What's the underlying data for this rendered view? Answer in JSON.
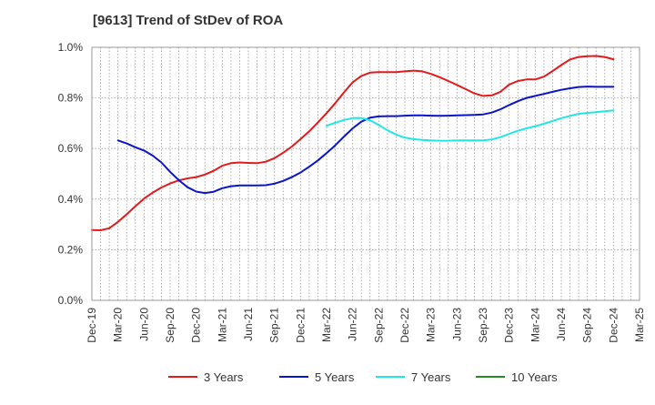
{
  "chart_data": {
    "type": "line",
    "title": "[9613]  Trend of StDev of ROA",
    "xlabel": "",
    "ylabel": "",
    "x": [
      "Dec-19",
      "Mar-20",
      "Jun-20",
      "Sep-20",
      "Dec-20",
      "Mar-21",
      "Jun-21",
      "Sep-21",
      "Dec-21",
      "Mar-22",
      "Jun-22",
      "Sep-22",
      "Dec-22",
      "Mar-23",
      "Jun-23",
      "Sep-23",
      "Dec-23",
      "Mar-24",
      "Jun-24",
      "Sep-24",
      "Dec-24",
      "Mar-25"
    ],
    "ylim": [
      0,
      1.0
    ],
    "yticks": [
      0,
      0.2,
      0.4,
      0.6,
      0.8,
      1.0
    ],
    "ytick_labels": [
      "0.0%",
      "0.2%",
      "0.4%",
      "0.6%",
      "0.8%",
      "1.0%"
    ],
    "grid": true,
    "legend_position": "bottom",
    "series": [
      {
        "name": "3 Years",
        "color": "#e31a1c",
        "points": [
          [
            "Dec-19",
            0.278
          ],
          [
            "Jan-20",
            0.277
          ],
          [
            "Feb-20",
            0.285
          ],
          [
            "Mar-20",
            0.31
          ],
          [
            "Apr-20",
            0.34
          ],
          [
            "May-20",
            0.372
          ],
          [
            "Jun-20",
            0.402
          ],
          [
            "Jul-20",
            0.426
          ],
          [
            "Aug-20",
            0.446
          ],
          [
            "Sep-20",
            0.462
          ],
          [
            "Oct-20",
            0.474
          ],
          [
            "Nov-20",
            0.482
          ],
          [
            "Dec-20",
            0.487
          ],
          [
            "Jan-21",
            0.497
          ],
          [
            "Feb-21",
            0.512
          ],
          [
            "Mar-21",
            0.532
          ],
          [
            "Apr-21",
            0.542
          ],
          [
            "May-21",
            0.545
          ],
          [
            "Jun-21",
            0.543
          ],
          [
            "Jul-21",
            0.542
          ],
          [
            "Aug-21",
            0.548
          ],
          [
            "Sep-21",
            0.562
          ],
          [
            "Oct-21",
            0.583
          ],
          [
            "Nov-21",
            0.608
          ],
          [
            "Dec-21",
            0.637
          ],
          [
            "Jan-22",
            0.668
          ],
          [
            "Feb-22",
            0.703
          ],
          [
            "Mar-22",
            0.74
          ],
          [
            "Apr-22",
            0.78
          ],
          [
            "May-22",
            0.822
          ],
          [
            "Jun-22",
            0.862
          ],
          [
            "Jul-22",
            0.887
          ],
          [
            "Aug-22",
            0.9
          ],
          [
            "Sep-22",
            0.902
          ],
          [
            "Oct-22",
            0.902
          ],
          [
            "Nov-22",
            0.902
          ],
          [
            "Dec-22",
            0.905
          ],
          [
            "Jan-23",
            0.908
          ],
          [
            "Feb-23",
            0.905
          ],
          [
            "Mar-23",
            0.895
          ],
          [
            "Apr-23",
            0.882
          ],
          [
            "May-23",
            0.867
          ],
          [
            "Jun-23",
            0.851
          ],
          [
            "Jul-23",
            0.835
          ],
          [
            "Aug-23",
            0.818
          ],
          [
            "Sep-23",
            0.808
          ],
          [
            "Oct-23",
            0.81
          ],
          [
            "Nov-23",
            0.824
          ],
          [
            "Dec-23",
            0.853
          ],
          [
            "Jan-24",
            0.867
          ],
          [
            "Feb-24",
            0.873
          ],
          [
            "Mar-24",
            0.873
          ],
          [
            "Apr-24",
            0.884
          ],
          [
            "May-24",
            0.906
          ],
          [
            "Jun-24",
            0.93
          ],
          [
            "Jul-24",
            0.952
          ],
          [
            "Aug-24",
            0.962
          ],
          [
            "Sep-24",
            0.965
          ],
          [
            "Oct-24",
            0.966
          ],
          [
            "Nov-24",
            0.962
          ],
          [
            "Dec-24",
            0.953
          ]
        ]
      },
      {
        "name": "5 Years",
        "color": "#0a14c8",
        "points": [
          [
            "Dec-19",
            null
          ],
          [
            "Jan-20",
            null
          ],
          [
            "Feb-20",
            null
          ],
          [
            "Mar-20",
            0.632
          ],
          [
            "Apr-20",
            0.62
          ],
          [
            "May-20",
            0.605
          ],
          [
            "Jun-20",
            0.592
          ],
          [
            "Jul-20",
            0.572
          ],
          [
            "Aug-20",
            0.545
          ],
          [
            "Sep-20",
            0.508
          ],
          [
            "Oct-20",
            0.475
          ],
          [
            "Nov-20",
            0.447
          ],
          [
            "Dec-20",
            0.43
          ],
          [
            "Jan-21",
            0.424
          ],
          [
            "Feb-21",
            0.429
          ],
          [
            "Mar-21",
            0.443
          ],
          [
            "Apr-21",
            0.451
          ],
          [
            "May-21",
            0.454
          ],
          [
            "Jun-21",
            0.454
          ],
          [
            "Jul-21",
            0.454
          ],
          [
            "Aug-21",
            0.455
          ],
          [
            "Sep-21",
            0.461
          ],
          [
            "Oct-21",
            0.472
          ],
          [
            "Nov-21",
            0.487
          ],
          [
            "Dec-21",
            0.505
          ],
          [
            "Jan-22",
            0.528
          ],
          [
            "Feb-22",
            0.553
          ],
          [
            "Mar-22",
            0.582
          ],
          [
            "Apr-22",
            0.613
          ],
          [
            "May-22",
            0.647
          ],
          [
            "Jun-22",
            0.68
          ],
          [
            "Jul-22",
            0.706
          ],
          [
            "Aug-22",
            0.722
          ],
          [
            "Sep-22",
            0.727
          ],
          [
            "Oct-22",
            0.728
          ],
          [
            "Nov-22",
            0.728
          ],
          [
            "Dec-22",
            0.73
          ],
          [
            "Jan-23",
            0.731
          ],
          [
            "Feb-23",
            0.731
          ],
          [
            "Mar-23",
            0.73
          ],
          [
            "Apr-23",
            0.729
          ],
          [
            "May-23",
            0.73
          ],
          [
            "Jun-23",
            0.731
          ],
          [
            "Jul-23",
            0.732
          ],
          [
            "Aug-23",
            0.733
          ],
          [
            "Sep-23",
            0.735
          ],
          [
            "Oct-23",
            0.742
          ],
          [
            "Nov-23",
            0.755
          ],
          [
            "Dec-23",
            0.772
          ],
          [
            "Jan-24",
            0.787
          ],
          [
            "Feb-24",
            0.8
          ],
          [
            "Mar-24",
            0.808
          ],
          [
            "Apr-24",
            0.816
          ],
          [
            "May-24",
            0.824
          ],
          [
            "Jun-24",
            0.832
          ],
          [
            "Jul-24",
            0.838
          ],
          [
            "Aug-24",
            0.843
          ],
          [
            "Sep-24",
            0.845
          ],
          [
            "Oct-24",
            0.844
          ],
          [
            "Nov-24",
            0.844
          ],
          [
            "Dec-24",
            0.844
          ]
        ]
      },
      {
        "name": "7 Years",
        "color": "#22e6e6",
        "points": [
          [
            "Mar-22",
            0.69
          ],
          [
            "Apr-22",
            0.702
          ],
          [
            "May-22",
            0.713
          ],
          [
            "Jun-22",
            0.72
          ],
          [
            "Jul-22",
            0.721
          ],
          [
            "Aug-22",
            0.712
          ],
          [
            "Sep-22",
            0.693
          ],
          [
            "Oct-22",
            0.672
          ],
          [
            "Nov-22",
            0.655
          ],
          [
            "Dec-22",
            0.643
          ],
          [
            "Jan-23",
            0.637
          ],
          [
            "Feb-23",
            0.634
          ],
          [
            "Mar-23",
            0.632
          ],
          [
            "Apr-23",
            0.631
          ],
          [
            "May-23",
            0.631
          ],
          [
            "Jun-23",
            0.632
          ],
          [
            "Jul-23",
            0.632
          ],
          [
            "Aug-23",
            0.632
          ],
          [
            "Sep-23",
            0.632
          ],
          [
            "Oct-23",
            0.636
          ],
          [
            "Nov-23",
            0.645
          ],
          [
            "Dec-23",
            0.658
          ],
          [
            "Jan-24",
            0.67
          ],
          [
            "Feb-24",
            0.68
          ],
          [
            "Mar-24",
            0.688
          ],
          [
            "Apr-24",
            0.698
          ],
          [
            "May-24",
            0.709
          ],
          [
            "Jun-24",
            0.72
          ],
          [
            "Jul-24",
            0.729
          ],
          [
            "Aug-24",
            0.737
          ],
          [
            "Sep-24",
            0.741
          ],
          [
            "Oct-24",
            0.744
          ],
          [
            "Nov-24",
            0.747
          ],
          [
            "Dec-24",
            0.751
          ]
        ]
      },
      {
        "name": "10 Years",
        "color": "#2a8a2a",
        "points": []
      }
    ]
  }
}
